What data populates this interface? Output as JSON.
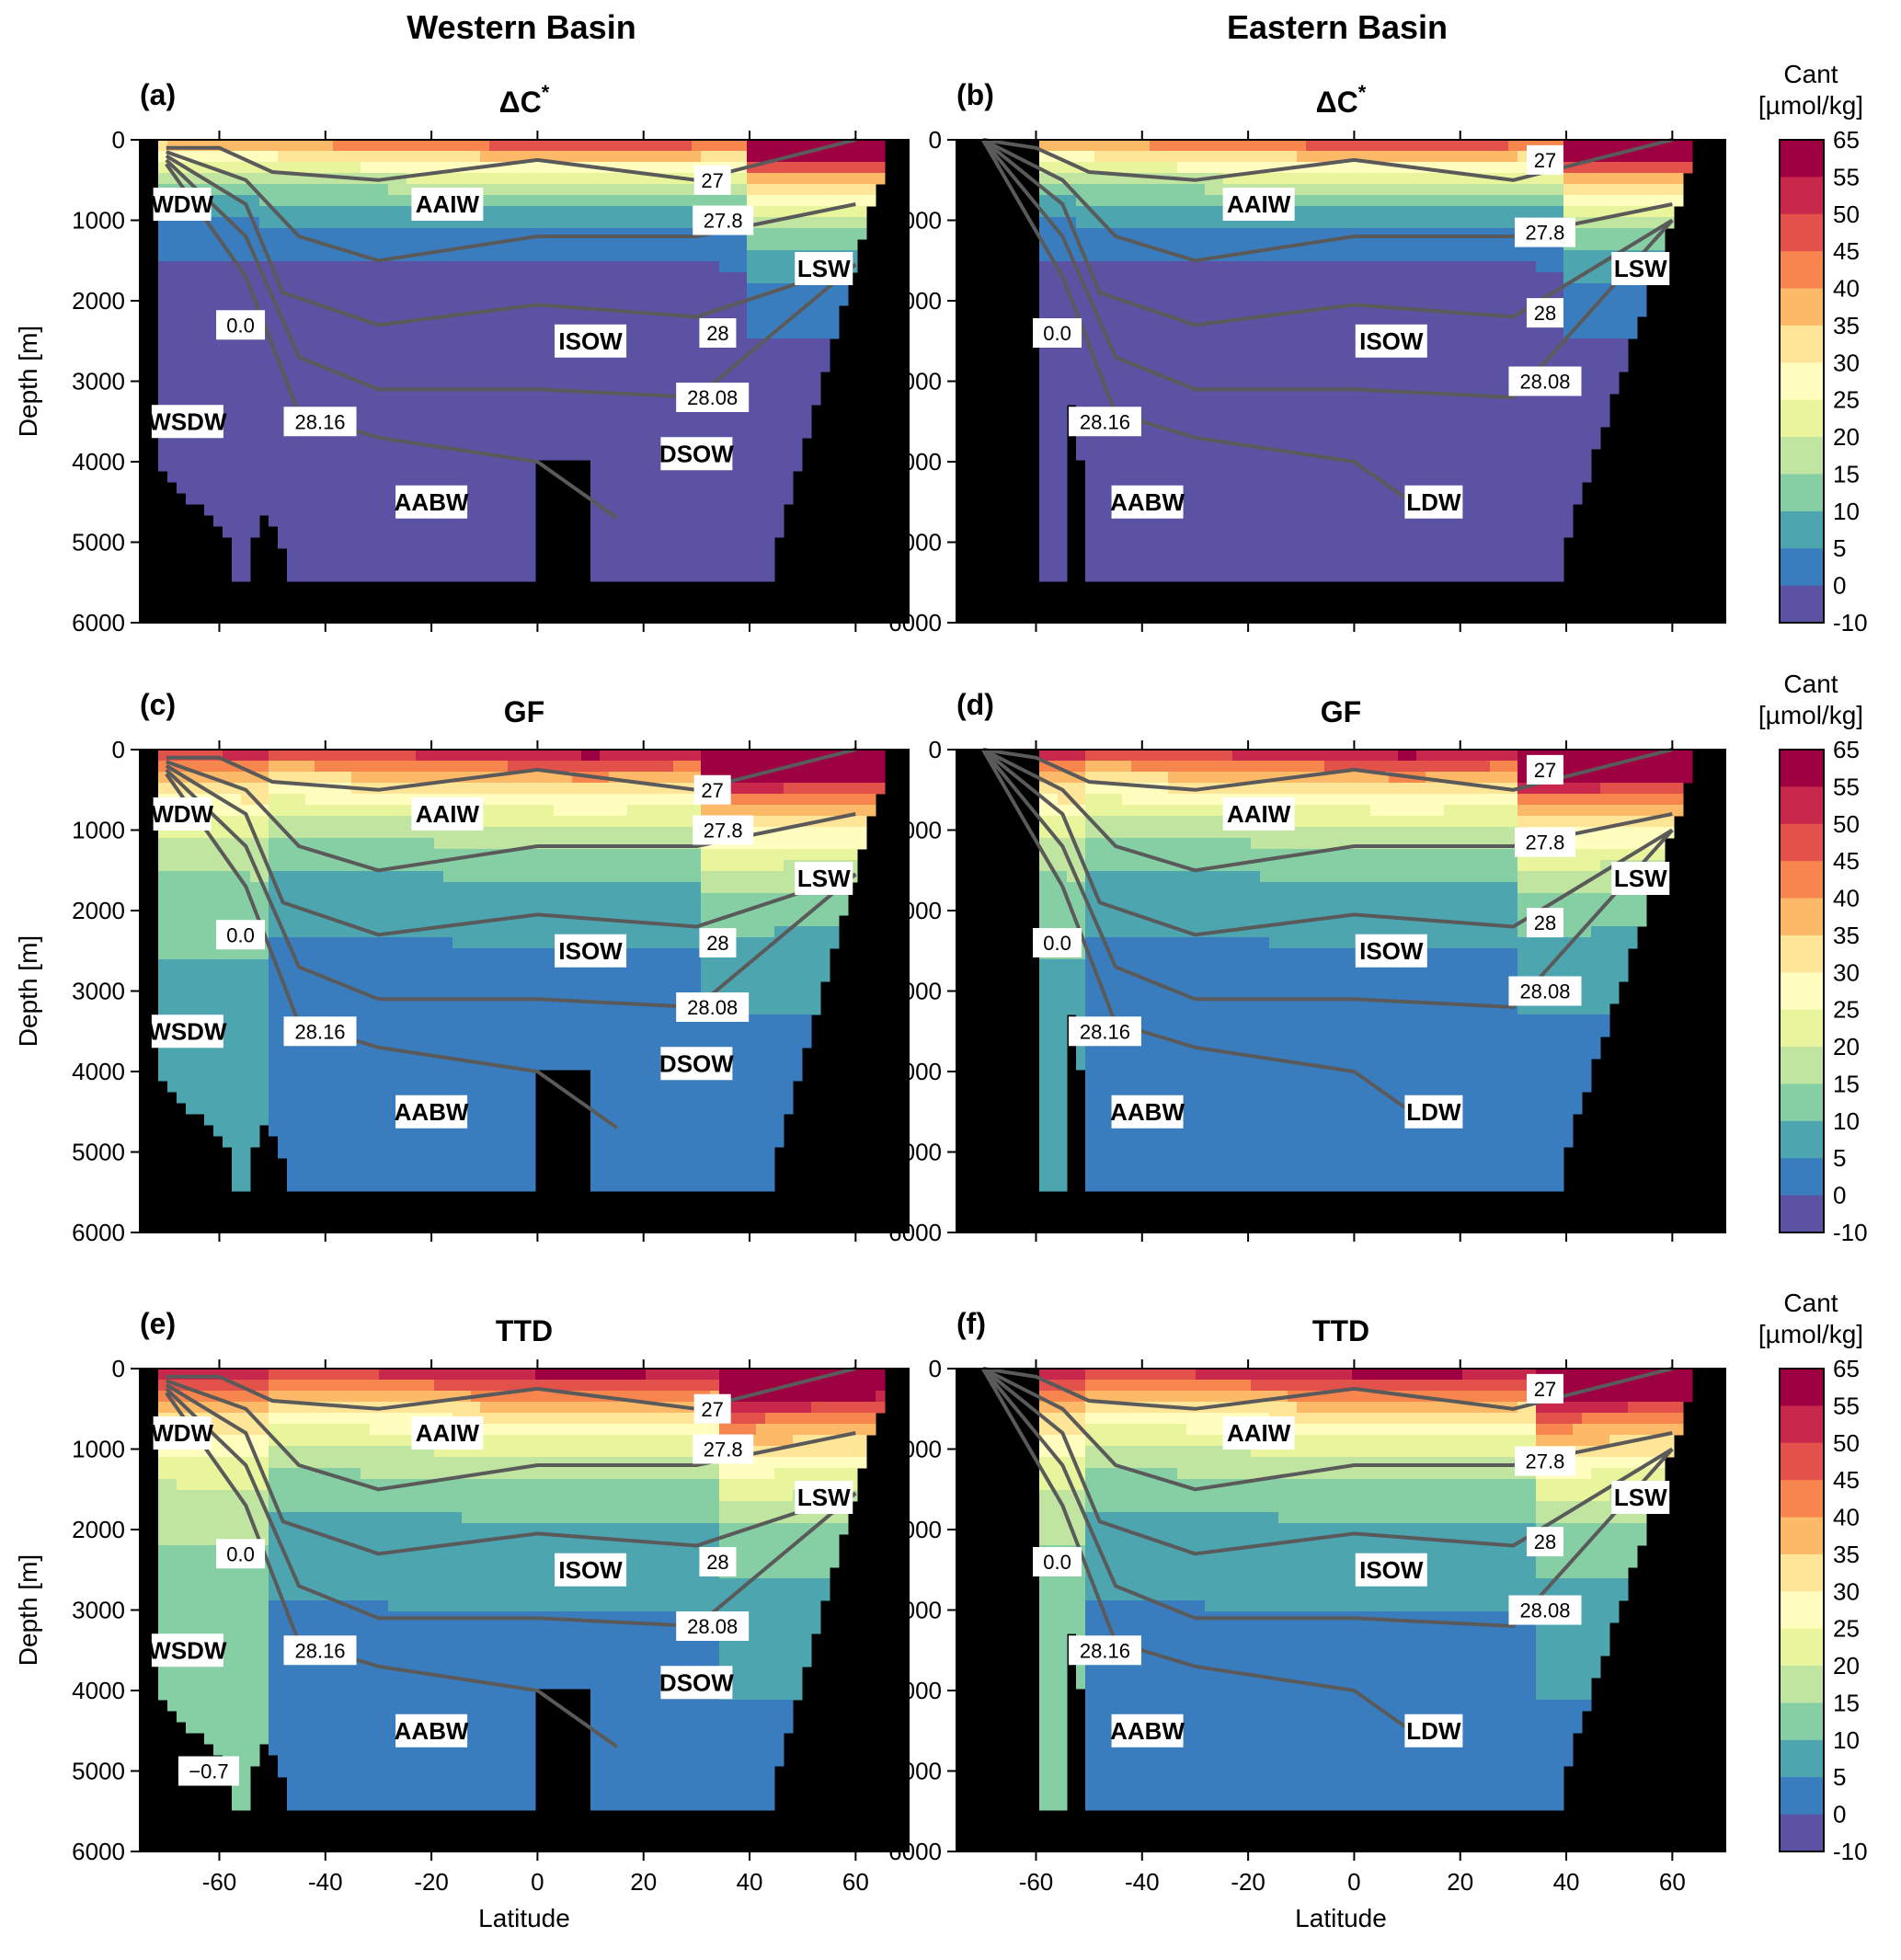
{
  "headers": {
    "left": "Western Basin",
    "right": "Eastern Basin"
  },
  "colorbar": {
    "title_line1": "Cant",
    "title_line2": "[µmol/kg]",
    "ticks": [
      "65",
      "55",
      "50",
      "45",
      "40",
      "35",
      "30",
      "25",
      "20",
      "15",
      "10",
      "5",
      "0",
      "-10"
    ],
    "colors": [
      "#9e0142",
      "#c9274b",
      "#e2514a",
      "#f7854e",
      "#fcb967",
      "#fee597",
      "#fffebf",
      "#e8f59c",
      "#bfe5a0",
      "#86cfa5",
      "#4da5b0",
      "#3a7dbf",
      "#5b52a3"
    ]
  },
  "axes": {
    "ylabel": "Depth [m]",
    "xlabel": "Latitude",
    "yticks": [
      "0",
      "1000",
      "2000",
      "3000",
      "4000",
      "5000",
      "6000"
    ],
    "xticks": [
      "-60",
      "-40",
      "-20",
      "0",
      "20",
      "40",
      "60"
    ]
  },
  "panels": [
    {
      "id": "a",
      "tag": "(a)",
      "title": "ΔC",
      "sup": "*",
      "basin": "W",
      "method": "dc",
      "labels": [
        {
          "t": "WDW",
          "la": -67,
          "d": 800
        },
        {
          "t": "AAIW",
          "la": -17,
          "d": 800
        },
        {
          "t": "LSW",
          "la": 54,
          "d": 1600
        },
        {
          "t": "ISOW",
          "la": 10,
          "d": 2500
        },
        {
          "t": "WSDW",
          "la": -66,
          "d": 3500
        },
        {
          "t": "DSOW",
          "la": 30,
          "d": 3900
        },
        {
          "t": "AABW",
          "la": -20,
          "d": 4500
        }
      ],
      "iso": [
        {
          "t": "27",
          "la": 33,
          "d": 500
        },
        {
          "t": "27.8",
          "la": 35,
          "d": 1000
        },
        {
          "t": "28",
          "la": 34,
          "d": 2400
        },
        {
          "t": "28.08",
          "la": 33,
          "d": 3200
        },
        {
          "t": "28.16",
          "la": -41,
          "d": 3500
        },
        {
          "t": "0.0",
          "la": -56,
          "d": 2300
        }
      ]
    },
    {
      "id": "b",
      "tag": "(b)",
      "title": "ΔC",
      "sup": "*",
      "basin": "E",
      "method": "dc",
      "labels": [
        {
          "t": "AAIW",
          "la": -18,
          "d": 800
        },
        {
          "t": "LSW",
          "la": 54,
          "d": 1600
        },
        {
          "t": "ISOW",
          "la": 7,
          "d": 2500
        },
        {
          "t": "AABW",
          "la": -39,
          "d": 4500
        },
        {
          "t": "LDW",
          "la": 15,
          "d": 4500
        }
      ],
      "iso": [
        {
          "t": "27",
          "la": 36,
          "d": 250
        },
        {
          "t": "27.8",
          "la": 36,
          "d": 1150
        },
        {
          "t": "28",
          "la": 36,
          "d": 2150
        },
        {
          "t": "28.08",
          "la": 36,
          "d": 3000
        },
        {
          "t": "28.16",
          "la": -47,
          "d": 3500
        },
        {
          "t": "0.0",
          "la": -56,
          "d": 2400
        }
      ]
    },
    {
      "id": "c",
      "tag": "(c)",
      "title": "GF",
      "sup": "",
      "basin": "W",
      "method": "gf",
      "labels": [
        {
          "t": "WDW",
          "la": -67,
          "d": 800
        },
        {
          "t": "AAIW",
          "la": -17,
          "d": 800
        },
        {
          "t": "LSW",
          "la": 54,
          "d": 1600
        },
        {
          "t": "ISOW",
          "la": 10,
          "d": 2500
        },
        {
          "t": "WSDW",
          "la": -66,
          "d": 3500
        },
        {
          "t": "DSOW",
          "la": 30,
          "d": 3900
        },
        {
          "t": "AABW",
          "la": -20,
          "d": 4500
        }
      ],
      "iso": [
        {
          "t": "27",
          "la": 33,
          "d": 500
        },
        {
          "t": "27.8",
          "la": 35,
          "d": 1000
        },
        {
          "t": "28",
          "la": 34,
          "d": 2400
        },
        {
          "t": "28.08",
          "la": 33,
          "d": 3200
        },
        {
          "t": "28.16",
          "la": -41,
          "d": 3500
        },
        {
          "t": "0.0",
          "la": -56,
          "d": 2300
        }
      ]
    },
    {
      "id": "d",
      "tag": "(d)",
      "title": "GF",
      "sup": "",
      "basin": "E",
      "method": "gf",
      "labels": [
        {
          "t": "AAIW",
          "la": -18,
          "d": 800
        },
        {
          "t": "LSW",
          "la": 54,
          "d": 1600
        },
        {
          "t": "ISOW",
          "la": 7,
          "d": 2500
        },
        {
          "t": "AABW",
          "la": -39,
          "d": 4500
        },
        {
          "t": "LDW",
          "la": 15,
          "d": 4500
        }
      ],
      "iso": [
        {
          "t": "27",
          "la": 36,
          "d": 250
        },
        {
          "t": "27.8",
          "la": 36,
          "d": 1150
        },
        {
          "t": "28",
          "la": 36,
          "d": 2150
        },
        {
          "t": "28.08",
          "la": 36,
          "d": 3000
        },
        {
          "t": "28.16",
          "la": -47,
          "d": 3500
        },
        {
          "t": "0.0",
          "la": -56,
          "d": 2400
        }
      ]
    },
    {
      "id": "e",
      "tag": "(e)",
      "title": "TTD",
      "sup": "",
      "basin": "W",
      "method": "ttd",
      "labels": [
        {
          "t": "WDW",
          "la": -67,
          "d": 800
        },
        {
          "t": "AAIW",
          "la": -17,
          "d": 800
        },
        {
          "t": "LSW",
          "la": 54,
          "d": 1600
        },
        {
          "t": "ISOW",
          "la": 10,
          "d": 2500
        },
        {
          "t": "WSDW",
          "la": -66,
          "d": 3500
        },
        {
          "t": "DSOW",
          "la": 30,
          "d": 3900
        },
        {
          "t": "AABW",
          "la": -20,
          "d": 4500
        }
      ],
      "iso": [
        {
          "t": "27",
          "la": 33,
          "d": 500
        },
        {
          "t": "27.8",
          "la": 35,
          "d": 1000
        },
        {
          "t": "28",
          "la": 34,
          "d": 2400
        },
        {
          "t": "28.08",
          "la": 33,
          "d": 3200
        },
        {
          "t": "28.16",
          "la": -41,
          "d": 3500
        },
        {
          "t": "0.0",
          "la": -56,
          "d": 2300
        },
        {
          "t": "−0.7",
          "la": -62,
          "d": 5000
        }
      ]
    },
    {
      "id": "f",
      "tag": "(f)",
      "title": "TTD",
      "sup": "",
      "basin": "E",
      "method": "ttd",
      "labels": [
        {
          "t": "AAIW",
          "la": -18,
          "d": 800
        },
        {
          "t": "LSW",
          "la": 54,
          "d": 1600
        },
        {
          "t": "ISOW",
          "la": 7,
          "d": 2500
        },
        {
          "t": "AABW",
          "la": -39,
          "d": 4500
        },
        {
          "t": "LDW",
          "la": 15,
          "d": 4500
        }
      ],
      "iso": [
        {
          "t": "27",
          "la": 36,
          "d": 250
        },
        {
          "t": "27.8",
          "la": 36,
          "d": 1150
        },
        {
          "t": "28",
          "la": 36,
          "d": 2150
        },
        {
          "t": "28.08",
          "la": 36,
          "d": 3000
        },
        {
          "t": "28.16",
          "la": -47,
          "d": 3500
        },
        {
          "t": "0.0",
          "la": -56,
          "d": 2400
        }
      ]
    }
  ],
  "chart_data": {
    "type": "heatmap",
    "variable": "Cant",
    "units": "µmol/kg",
    "xlabel": "Latitude",
    "ylabel": "Depth [m]",
    "xlim": [
      -75,
      70
    ],
    "ylim": [
      6000,
      0
    ],
    "color_levels": [
      -10,
      0,
      5,
      10,
      15,
      20,
      25,
      30,
      35,
      40,
      45,
      50,
      55,
      65
    ],
    "isopycnals": [
      "27",
      "27.8",
      "28",
      "28.08",
      "28.16"
    ],
    "isotherms": [
      "0.0",
      "−0.7"
    ],
    "panels": [
      {
        "tag": "(a)",
        "basin": "Western Basin",
        "method": "ΔC*",
        "water_masses": [
          "WDW",
          "AAIW",
          "LSW",
          "ISOW",
          "WSDW",
          "DSOW",
          "AABW"
        ]
      },
      {
        "tag": "(b)",
        "basin": "Eastern Basin",
        "method": "ΔC*",
        "water_masses": [
          "AAIW",
          "LSW",
          "ISOW",
          "AABW",
          "LDW"
        ]
      },
      {
        "tag": "(c)",
        "basin": "Western Basin",
        "method": "GF",
        "water_masses": [
          "WDW",
          "AAIW",
          "LSW",
          "ISOW",
          "WSDW",
          "DSOW",
          "AABW"
        ]
      },
      {
        "tag": "(d)",
        "basin": "Eastern Basin",
        "method": "GF",
        "water_masses": [
          "AAIW",
          "LSW",
          "ISOW",
          "AABW",
          "LDW"
        ]
      },
      {
        "tag": "(e)",
        "basin": "Western Basin",
        "method": "TTD",
        "water_masses": [
          "WDW",
          "AAIW",
          "LSW",
          "ISOW",
          "WSDW",
          "DSOW",
          "AABW"
        ]
      },
      {
        "tag": "(f)",
        "basin": "Eastern Basin",
        "method": "TTD",
        "water_masses": [
          "AAIW",
          "LSW",
          "ISOW",
          "AABW",
          "LDW"
        ]
      }
    ]
  }
}
